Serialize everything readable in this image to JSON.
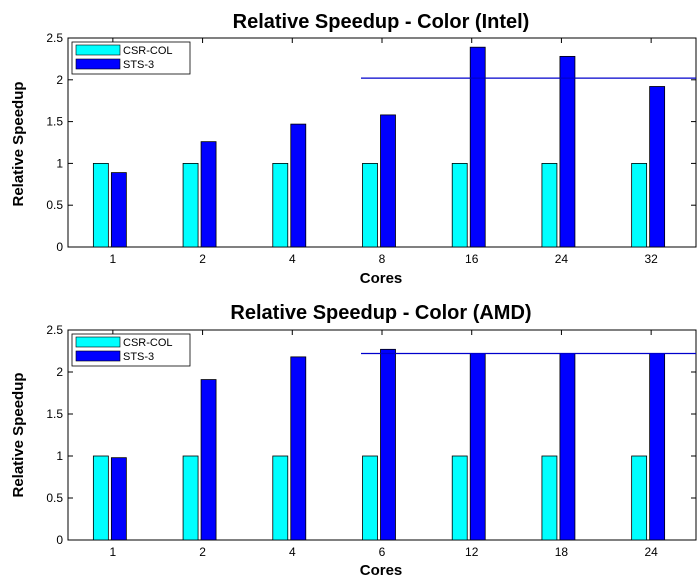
{
  "chart_data": [
    {
      "type": "bar",
      "title": "Relative Speedup - Color (Intel)",
      "xlabel": "Cores",
      "ylabel": "Relative Speedup",
      "categories": [
        "1",
        "2",
        "4",
        "8",
        "16",
        "24",
        "32"
      ],
      "ylim": [
        0,
        2.5
      ],
      "yticks": [
        "0",
        "0.5",
        "1",
        "1.5",
        "2",
        "2.5"
      ],
      "series": [
        {
          "name": "CSR-COL",
          "color": "#00ffff",
          "values": [
            1,
            1,
            1,
            1,
            1,
            1,
            1
          ]
        },
        {
          "name": "STS-3",
          "color": "#0000ff",
          "values": [
            0.89,
            1.26,
            1.47,
            1.58,
            2.39,
            2.28,
            1.92
          ]
        }
      ],
      "reference_line": {
        "y": 2.02,
        "from_category": "8",
        "color": "#0000cc"
      },
      "legend_position": "top-left"
    },
    {
      "type": "bar",
      "title": "Relative Speedup - Color (AMD)",
      "xlabel": "Cores",
      "ylabel": "Relative Speedup",
      "categories": [
        "1",
        "2",
        "4",
        "6",
        "12",
        "18",
        "24"
      ],
      "ylim": [
        0,
        2.5
      ],
      "yticks": [
        "0",
        "0.5",
        "1",
        "1.5",
        "2",
        "2.5"
      ],
      "series": [
        {
          "name": "CSR-COL",
          "color": "#00ffff",
          "values": [
            1,
            1,
            1,
            1,
            1,
            1,
            1
          ]
        },
        {
          "name": "STS-3",
          "color": "#0000ff",
          "values": [
            0.98,
            1.91,
            2.18,
            2.27,
            2.22,
            2.22,
            2.22
          ]
        }
      ],
      "reference_line": {
        "y": 2.22,
        "from_category": "6",
        "color": "#0000cc"
      },
      "legend_position": "top-left"
    }
  ]
}
